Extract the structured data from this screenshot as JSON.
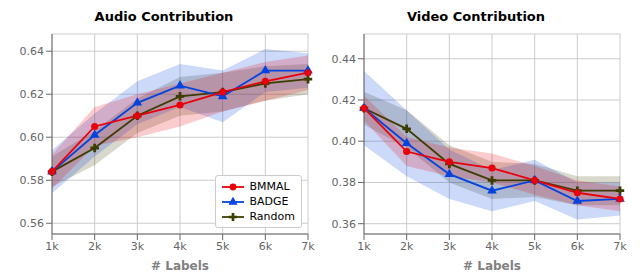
{
  "chart_data": [
    {
      "type": "line",
      "title": "Audio Contribution",
      "x_label": "# Labels",
      "categories": [
        "1k",
        "2k",
        "3k",
        "4k",
        "5k",
        "6k",
        "7k"
      ],
      "series": [
        {
          "name": "BMMAL",
          "color": "#e8000b",
          "marker": "circle",
          "values": [
            0.584,
            0.605,
            0.61,
            0.615,
            0.621,
            0.626,
            0.63
          ],
          "std": [
            0.008,
            0.009,
            0.01,
            0.01,
            0.009,
            0.009,
            0.008
          ]
        },
        {
          "name": "BADGE",
          "color": "#0343df",
          "marker": "triangle",
          "values": [
            0.584,
            0.601,
            0.616,
            0.624,
            0.619,
            0.631,
            0.631
          ],
          "std": [
            0.01,
            0.01,
            0.01,
            0.01,
            0.012,
            0.01,
            0.008
          ]
        },
        {
          "name": "Random",
          "color": "#3d3d00",
          "marker": "plus",
          "values": [
            0.584,
            0.595,
            0.61,
            0.619,
            0.621,
            0.625,
            0.627
          ],
          "std": [
            0.007,
            0.008,
            0.008,
            0.009,
            0.009,
            0.008,
            0.007
          ]
        }
      ],
      "ylim": [
        0.555,
        0.648
      ],
      "yticks": [
        0.56,
        0.58,
        {
          "value": 0.6,
          "label": "0.60"
        },
        0.62,
        0.64
      ],
      "grid": true,
      "legend": "lower right"
    },
    {
      "type": "line",
      "title": "Video Contribution",
      "x_label": "# Labels",
      "categories": [
        "1k",
        "2k",
        "3k",
        "4k",
        "5k",
        "6k",
        "7k"
      ],
      "series": [
        {
          "name": "BMMAL",
          "color": "#e8000b",
          "marker": "circle",
          "values": [
            0.416,
            0.395,
            0.39,
            0.387,
            0.381,
            0.375,
            0.372
          ],
          "std": [
            0.006,
            0.007,
            0.007,
            0.007,
            0.007,
            0.006,
            0.006
          ]
        },
        {
          "name": "BADGE",
          "color": "#0343df",
          "marker": "triangle",
          "values": [
            0.416,
            0.399,
            0.384,
            0.376,
            0.381,
            0.371,
            0.372
          ],
          "std": [
            0.018,
            0.016,
            0.012,
            0.01,
            0.01,
            0.009,
            0.008
          ]
        },
        {
          "name": "Random",
          "color": "#3d3d00",
          "marker": "plus",
          "values": [
            0.416,
            0.406,
            0.389,
            0.381,
            0.381,
            0.376,
            0.376
          ],
          "std": [
            0.008,
            0.009,
            0.009,
            0.009,
            0.008,
            0.007,
            0.007
          ]
        }
      ],
      "ylim": [
        0.355,
        0.452
      ],
      "yticks": [
        0.36,
        0.38,
        {
          "value": 0.4,
          "label": "0.40"
        },
        0.42,
        0.44
      ],
      "grid": true
    }
  ]
}
